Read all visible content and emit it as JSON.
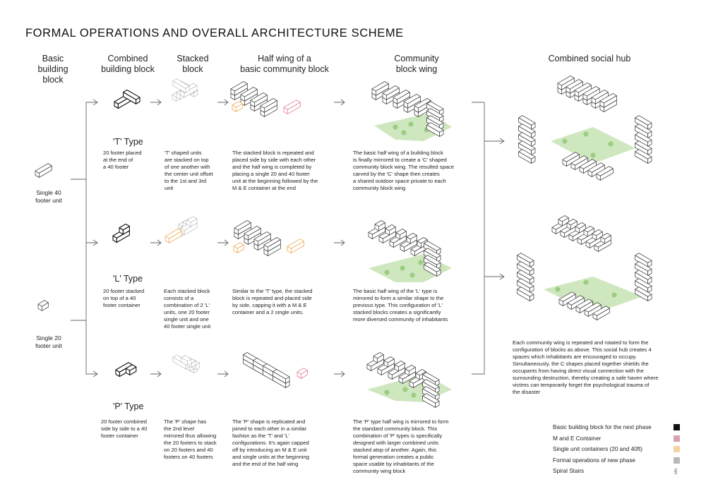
{
  "title": "FORMAL OPERATIONS AND OVERALL ARCHITECTURE SCHEME",
  "headers": {
    "basic": "Basic\nbuilding block",
    "combined": "Combined\nbuilding block",
    "stacked": "Stacked\nblock",
    "half_wing": "Half wing of a\nbasic community block",
    "community": "Community\nblock wing",
    "hub": "Combined social hub"
  },
  "units": {
    "unit40": "Single 40\nfooter unit",
    "unit20": "Single 20\nfooter unit"
  },
  "rows": [
    {
      "type": "'T' Type",
      "combined_desc": "20 footer placed\nat the end of\na 40 footer",
      "stacked_desc": "'T' shaped units\nare stacked on top\nof one another with\nthe center unit offset\nto the 1st and 3rd\nunit",
      "half_desc": "The stacked block is repeated and\nplaced side by side with each other\nand the half wing is completed by\nplacing a single 20 and 40 footer\nunit at the beginning followed by the\nM & E container at the end",
      "community_desc": "The basic half wing of a building block\nis finally mirrored to create a 'C' shaped\ncommunity block wing. The resulted space\ncarved by the 'C' shape then creates\na shared outdoor space private to each\ncommunity block wing"
    },
    {
      "type": "'L' Type",
      "combined_desc": "20 footer stacked\non top of a 40\nfooter container",
      "stacked_desc": "Each stacked block\nconsists of a\ncombination of 2 'L'\nunits, one 20 footer\nsingle unit and one\n40 footer single unit",
      "half_desc": "Similar to the 'T' type, the stacked\nblock is repeated and placed side\nby side, capping it with a M & E\ncontainer and a 2 single units.",
      "community_desc": "The basic half wing of the 'L' type is\nmirrored to form a similar shape to the\nprevious type. This configuration of 'L'\nstacked blocks creates a significantly\nmore diversed community of inhabitants"
    },
    {
      "type": "'P' Type",
      "combined_desc": "20 footer combined\nside by side to a 40\nfooter container",
      "stacked_desc": "The 'P' shape has\nthe 2nd level\nmirrored thus allowing\nthe 20 footers to stack\non 20 footers and 40\nfooters on 40 footers",
      "half_desc": "The 'P' shape is replicated and\njoined to each other in a similar\nfashion as the 'T' and 'L'\nconfigurations. It's again capped\noff by introducing an M & E unit\nand single units at the beginning\nand the end of the half wing",
      "community_desc": "The 'P' type half wing is mirrored to form\nthe standard community block. This\ncombination of 'P' types is specifically\ndesigned with larger combined units\nstacked atop of another. Again, this\nformal generation creates a public\nspace usable by inhabitants of the\ncommunity wing block"
    }
  ],
  "hub_desc": "Each community wing is repeated and rotated to form the\nconfiguration of blocks as above. This social hub creates 4\nspaces which inhabitants are encouraged to occupy.\nSimultaneously, the C shapes placed together shields the\noccupants from having direct visual connection with the\nsurrounding destruction, thereby creating a safe haven where\nvictims can temporarily forget the psychological trauma of\nthe disaster",
  "legend": [
    {
      "label": "Basic building block for the next phase",
      "color": "#111111"
    },
    {
      "label": "M and E Container",
      "color": "#d9a3ad"
    },
    {
      "label": "Single unit containers (20 and 40ft)",
      "color": "#f6d3a2"
    },
    {
      "label": "Formal operations of new phase",
      "color": "#b8b8b8"
    },
    {
      "label": "Spiral Stairs",
      "icon": "spiral-stairs-icon"
    }
  ]
}
